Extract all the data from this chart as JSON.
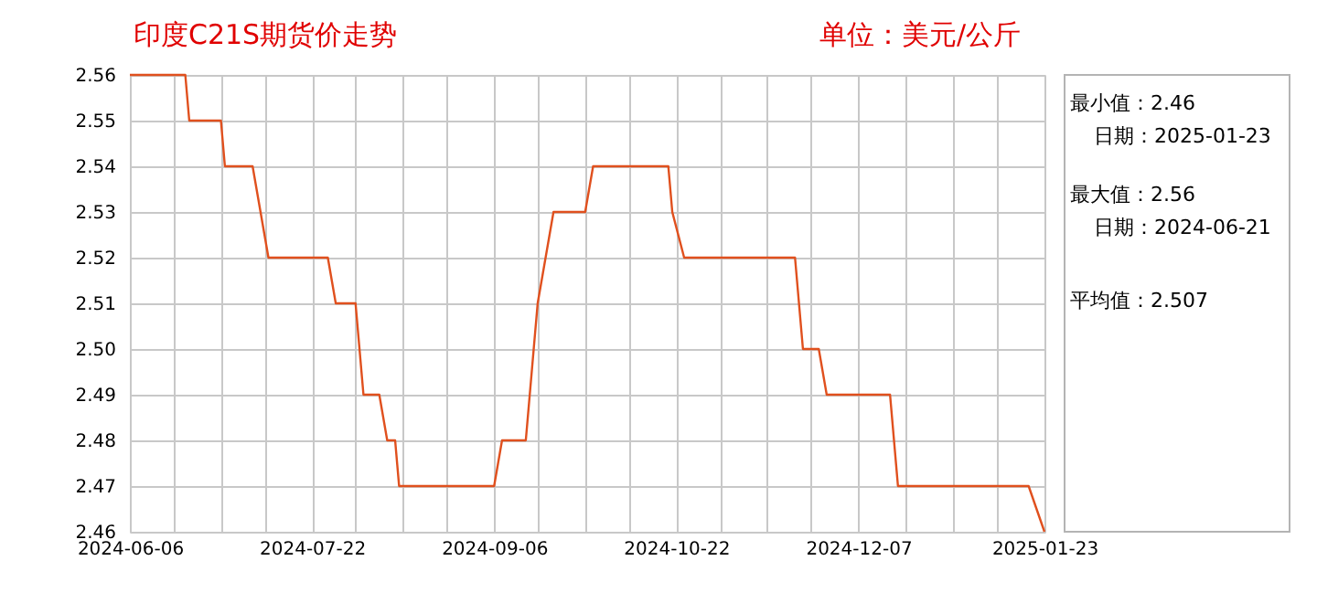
{
  "chart_data": {
    "type": "line",
    "title": "印度C21S期货价走势",
    "ylabel": "单位：美元/公斤",
    "series": [
      {
        "color": "#e0501e",
        "x": [
          "2024-06-06",
          "2024-06-20",
          "2024-06-21",
          "2024-06-29",
          "2024-06-30",
          "2024-07-07",
          "2024-07-09",
          "2024-07-11",
          "2024-07-26",
          "2024-07-28",
          "2024-08-02",
          "2024-08-03",
          "2024-08-04",
          "2024-08-08",
          "2024-08-10",
          "2024-08-12",
          "2024-08-13",
          "2024-09-06",
          "2024-09-08",
          "2024-09-14",
          "2024-09-15",
          "2024-09-16",
          "2024-09-17",
          "2024-09-21",
          "2024-09-29",
          "2024-10-01",
          "2024-10-20",
          "2024-10-21",
          "2024-10-24",
          "2024-11-21",
          "2024-11-23",
          "2024-11-27",
          "2024-11-29",
          "2024-12-15",
          "2024-12-17",
          "2025-01-19",
          "2025-01-23"
        ],
        "values": [
          2.56,
          2.56,
          2.55,
          2.55,
          2.54,
          2.54,
          2.53,
          2.52,
          2.52,
          2.51,
          2.51,
          2.5,
          2.49,
          2.49,
          2.48,
          2.48,
          2.47,
          2.47,
          2.48,
          2.48,
          2.49,
          2.5,
          2.51,
          2.53,
          2.53,
          2.54,
          2.54,
          2.53,
          2.52,
          2.52,
          2.5,
          2.5,
          2.49,
          2.49,
          2.47,
          2.47,
          2.46
        ]
      }
    ],
    "xlim": [
      "2024-06-06",
      "2025-01-23"
    ],
    "xticks": [
      {
        "value": "2024-06-06",
        "label": "2024-06-06"
      },
      {
        "value": "2024-06-17",
        "label": null
      },
      {
        "value": "2024-06-29",
        "label": null
      },
      {
        "value": "2024-07-10",
        "label": null
      },
      {
        "value": "2024-07-22",
        "label": "2024-07-22"
      },
      {
        "value": "2024-08-02",
        "label": null
      },
      {
        "value": "2024-08-14",
        "label": null
      },
      {
        "value": "2024-08-25",
        "label": null
      },
      {
        "value": "2024-09-06",
        "label": "2024-09-06"
      },
      {
        "value": "2024-09-17",
        "label": null
      },
      {
        "value": "2024-09-29",
        "label": null
      },
      {
        "value": "2024-10-10",
        "label": null
      },
      {
        "value": "2024-10-22",
        "label": "2024-10-22"
      },
      {
        "value": "2024-11-02",
        "label": null
      },
      {
        "value": "2024-11-14",
        "label": null
      },
      {
        "value": "2024-11-25",
        "label": null
      },
      {
        "value": "2024-12-07",
        "label": "2024-12-07"
      },
      {
        "value": "2024-12-19",
        "label": null
      },
      {
        "value": "2024-12-31",
        "label": null
      },
      {
        "value": "2025-01-11",
        "label": null
      },
      {
        "value": "2025-01-23",
        "label": "2025-01-23"
      }
    ],
    "ylim": [
      2.46,
      2.56
    ],
    "yticks": [
      2.46,
      2.47,
      2.48,
      2.49,
      {
        "value": 2.5,
        "label": "2.50"
      },
      2.51,
      2.52,
      2.53,
      2.54,
      2.55,
      2.56
    ],
    "grid": true,
    "marker": "none",
    "line_style": "solid",
    "annotations": [
      "最小值：2.46",
      "日期：2025-01-23",
      "最大值：2.56",
      "日期：2024-06-21",
      "平均值：2.507"
    ]
  }
}
